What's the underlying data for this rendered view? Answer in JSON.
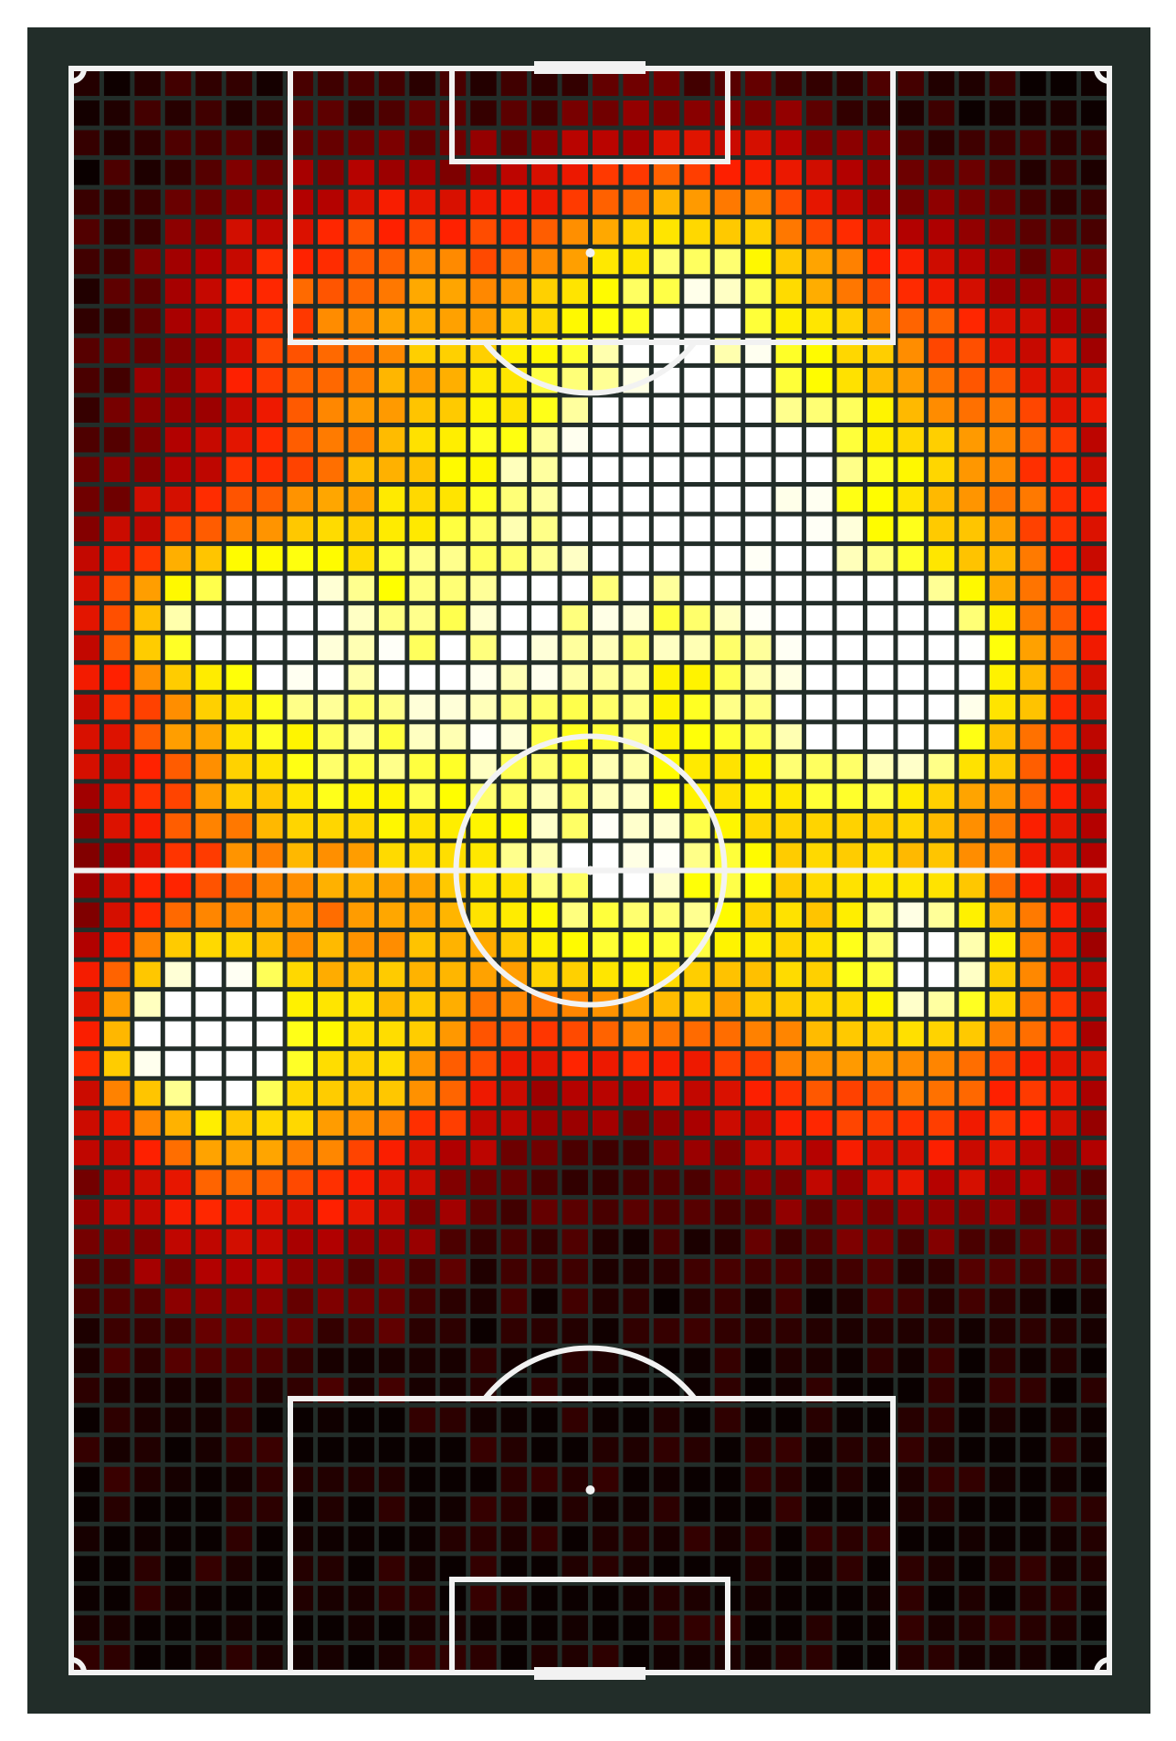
{
  "chart_data": {
    "type": "heatmap",
    "title": "",
    "xlabel": "",
    "ylabel": "",
    "grid": true,
    "orientation": "vertical-pitch",
    "cols": 34,
    "rows": 54,
    "value_range": [
      0,
      1
    ],
    "colormap": [
      "#0a0000",
      "#5a0000",
      "#b00000",
      "#ff2000",
      "#ff7a00",
      "#ffc800",
      "#ffff00",
      "#ffffff"
    ],
    "pitch_color": "#222d29",
    "line_color": "#f2f2f2",
    "hotspots": [
      {
        "c": 17.5,
        "r": 13.2,
        "sx": 8.5,
        "sy": 5.5,
        "a": 0.55
      },
      {
        "c": 19.2,
        "r": 13.0,
        "sx": 2.0,
        "sy": 1.6,
        "a": 0.35
      },
      {
        "c": 20.0,
        "r": 5.5,
        "sx": 3.5,
        "sy": 3.0,
        "a": 0.45
      },
      {
        "c": 8.5,
        "r": 6.5,
        "sx": 4.0,
        "sy": 3.0,
        "a": 0.32
      },
      {
        "c": 22.5,
        "r": 10.0,
        "sx": 8.0,
        "sy": 4.0,
        "a": 0.28
      },
      {
        "c": 4.5,
        "r": 17.8,
        "sx": 2.4,
        "sy": 1.6,
        "a": 0.52
      },
      {
        "c": 9.5,
        "r": 18.5,
        "sx": 6.5,
        "sy": 4.5,
        "a": 0.4
      },
      {
        "c": 6.0,
        "r": 23.0,
        "sx": 5.0,
        "sy": 3.5,
        "a": 0.38
      },
      {
        "c": 27.0,
        "r": 20.0,
        "sx": 3.0,
        "sy": 2.3,
        "a": 0.6
      },
      {
        "c": 25.0,
        "r": 17.0,
        "sx": 7.0,
        "sy": 5.0,
        "a": 0.4
      },
      {
        "c": 27.0,
        "r": 23.5,
        "sx": 4.0,
        "sy": 3.0,
        "a": 0.3
      },
      {
        "c": 17.5,
        "r": 26.0,
        "sx": 4.5,
        "sy": 4.0,
        "a": 0.45
      },
      {
        "c": 12.0,
        "r": 24.0,
        "sx": 5.0,
        "sy": 4.0,
        "a": 0.2
      },
      {
        "c": 3.5,
        "r": 31.8,
        "sx": 2.2,
        "sy": 2.0,
        "a": 0.78
      },
      {
        "c": 4.5,
        "r": 32.5,
        "sx": 3.5,
        "sy": 4.0,
        "a": 0.4
      },
      {
        "c": 10.0,
        "r": 32.5,
        "sx": 3.0,
        "sy": 3.0,
        "a": 0.45
      },
      {
        "c": 28.0,
        "r": 29.5,
        "sx": 2.0,
        "sy": 1.8,
        "a": 0.5
      },
      {
        "c": 26.5,
        "r": 30.5,
        "sx": 5.5,
        "sy": 4.0,
        "a": 0.5
      },
      {
        "c": 17.5,
        "r": 29.0,
        "sx": 3.5,
        "sy": 3.0,
        "a": 0.3
      },
      {
        "c": 5.5,
        "r": 37.5,
        "sx": 5.0,
        "sy": 3.5,
        "a": 0.22
      },
      {
        "c": 28.0,
        "r": 35.5,
        "sx": 5.0,
        "sy": 3.0,
        "a": 0.2
      }
    ]
  }
}
